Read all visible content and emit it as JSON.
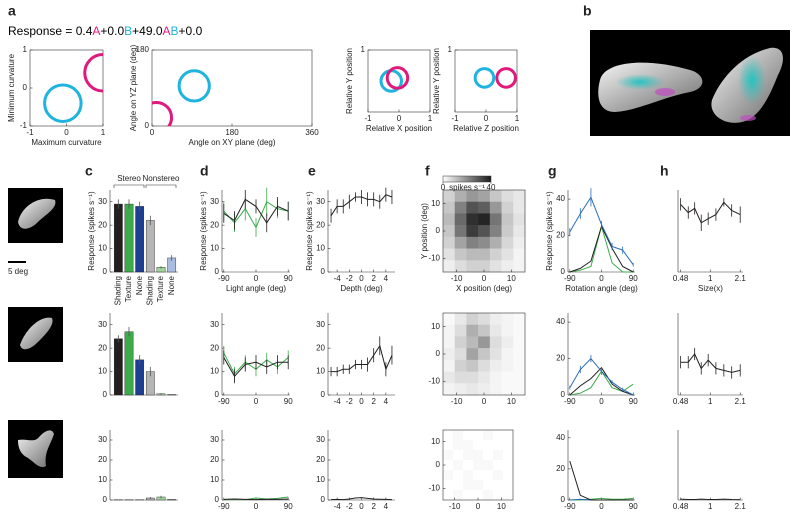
{
  "panel_labels": [
    "a",
    "b",
    "c",
    "d",
    "e",
    "f",
    "g",
    "h"
  ],
  "equation": [
    {
      "text": "Response = 0.4",
      "color": "#000000"
    },
    {
      "text": "A",
      "color": "#e0197d"
    },
    {
      "text": "+0.0",
      "color": "#000000"
    },
    {
      "text": "B",
      "color": "#1fb3e0"
    },
    {
      "text": "+49.0",
      "color": "#000000"
    },
    {
      "text": "A",
      "color": "#e0197d"
    },
    {
      "text": "B",
      "color": "#1fb3e0"
    },
    {
      "text": "+0.0",
      "color": "#000000"
    }
  ],
  "scale_bar_label": "5 deg",
  "chart_data": [
    {
      "type": "tuning",
      "xlabel": "Maximum curvature",
      "ylabel": "Minimum curvature",
      "xlim": [
        -1,
        1
      ],
      "ylim": [
        -1,
        1
      ],
      "xticks": [
        -1,
        0,
        1
      ],
      "yticks": [
        -1,
        0,
        1
      ],
      "circles": [
        {
          "color": "#1fb3e0",
          "x": -0.1,
          "y": -0.4,
          "r": 0.5
        },
        {
          "color": "#e0197d",
          "x": 1,
          "y": 0.4,
          "r": 0.5
        }
      ]
    },
    {
      "type": "tuning",
      "xlabel": "Angle on XY plane (deg)",
      "ylabel": "Angle on YZ plane (deg)",
      "xlim": [
        0,
        360
      ],
      "ylim": [
        0,
        180
      ],
      "xticks": [
        0,
        180,
        360
      ],
      "yticks": [
        0,
        180
      ],
      "circles": [
        {
          "color": "#1fb3e0",
          "x": 95,
          "y": 95,
          "r": 34
        },
        {
          "color": "#e0197d",
          "x": 10,
          "y": 20,
          "r": 34
        }
      ]
    },
    {
      "type": "tuning",
      "xlabel": "Relative X position",
      "ylabel": "Relative Y position",
      "xlim": [
        -1,
        1
      ],
      "ylim": [
        -1,
        1
      ],
      "xticks": [
        -1,
        0,
        1
      ],
      "yticks": [
        1
      ],
      "circles": [
        {
          "color": "#1fb3e0",
          "x": -0.25,
          "y": 0,
          "r": 0.33
        },
        {
          "color": "#e0197d",
          "x": -0.05,
          "y": 0.1,
          "r": 0.33
        }
      ]
    },
    {
      "type": "tuning",
      "xlabel": "Relative Z position",
      "ylabel": "Relative Y position",
      "xlim": [
        -1,
        1
      ],
      "ylim": [
        -1,
        1
      ],
      "xticks": [
        -1,
        0,
        1
      ],
      "yticks": [
        1
      ],
      "circles": [
        {
          "color": "#1fb3e0",
          "x": -0.05,
          "y": 0.1,
          "r": 0.3
        },
        {
          "color": "#e0197d",
          "x": 0.65,
          "y": 0.1,
          "r": 0.3
        }
      ]
    },
    {
      "type": "bar",
      "ylabel": "Response (spikes s⁻¹)",
      "categories": [
        "Shading",
        "Texture",
        "None",
        "Shading",
        "Texture",
        "None"
      ],
      "groups": [
        "Stereo",
        "Nonstereo"
      ],
      "values": [
        29,
        29,
        28,
        22,
        2,
        6
      ],
      "errors": [
        2,
        2,
        2,
        2,
        0.5,
        1.2
      ],
      "colors": [
        "#231f20",
        "#3daa4b",
        "#1e3f8f",
        "#b5b5b5",
        "#9fd39a",
        "#a8bde0"
      ],
      "ylim": [
        0,
        35
      ],
      "yticks": [
        0,
        10,
        20,
        30
      ]
    },
    {
      "type": "line",
      "xlabel": "Light angle (deg)",
      "ylabel": "Response (spikes s⁻¹)",
      "x": [
        -90,
        -60,
        -30,
        0,
        30,
        60,
        90
      ],
      "xlim": [
        -95,
        95
      ],
      "ylim": [
        0,
        35
      ],
      "xticks": [
        -90,
        0,
        90
      ],
      "yticks": [
        0,
        10,
        20,
        30
      ],
      "series": [
        {
          "color": "#3aaa49",
          "values": [
            26,
            21,
            27,
            19,
            30,
            27,
            26
          ],
          "errors": [
            4,
            4,
            5,
            4,
            6,
            4,
            4
          ]
        },
        {
          "color": "#231f20",
          "values": [
            25,
            22,
            31,
            28,
            21,
            28,
            26
          ],
          "errors": [
            4,
            4,
            4,
            3,
            4,
            4,
            4
          ]
        }
      ]
    },
    {
      "type": "line",
      "xlabel": "Depth (deg)",
      "ylabel": "Response (spikes s⁻¹)",
      "x": [
        -5,
        -4,
        -3,
        -2,
        -1,
        0,
        1,
        2,
        3,
        4,
        5
      ],
      "xlim": [
        -5.5,
        5.5
      ],
      "ylim": [
        0,
        35
      ],
      "xticks": [
        -4,
        -2,
        0,
        2,
        4
      ],
      "yticks": [
        0,
        10,
        20,
        30
      ],
      "series": [
        {
          "color": "#231f20",
          "values": [
            24,
            28,
            28,
            30,
            32,
            32,
            31,
            31,
            30,
            33,
            32
          ],
          "errors": [
            3,
            3,
            3,
            3,
            2,
            3,
            3,
            3,
            3,
            3,
            3
          ]
        }
      ]
    },
    {
      "type": "heatmap",
      "xlabel": "X position (deg)",
      "ylabel": "Y position (deg)",
      "xlim": [
        -15,
        15
      ],
      "ylim": [
        -15,
        15
      ],
      "xticks": [
        -10,
        0,
        10
      ],
      "yticks": [
        -10,
        0,
        10
      ],
      "clim": [
        0,
        40
      ],
      "colorbar": {
        "label": "spikes s⁻¹",
        "ticks": [
          0,
          40
        ]
      },
      "values": [
        [
          8,
          14,
          18,
          16,
          10,
          6,
          4
        ],
        [
          10,
          22,
          30,
          28,
          18,
          8,
          4
        ],
        [
          12,
          26,
          36,
          38,
          24,
          10,
          5
        ],
        [
          10,
          24,
          34,
          30,
          22,
          9,
          4
        ],
        [
          8,
          16,
          22,
          20,
          14,
          7,
          3
        ],
        [
          5,
          10,
          12,
          12,
          8,
          5,
          2
        ],
        [
          3,
          6,
          8,
          8,
          5,
          3,
          2
        ]
      ]
    },
    {
      "type": "line",
      "xlabel": "Rotation angle (deg)",
      "ylabel": "Response (spikes s⁻¹)",
      "x": [
        -90,
        -60,
        -30,
        0,
        30,
        60,
        90
      ],
      "xlim": [
        -95,
        95
      ],
      "ylim": [
        0,
        45
      ],
      "xticks": [
        -90,
        0,
        90
      ],
      "yticks": [
        0,
        20,
        40
      ],
      "series": [
        {
          "color": "#3aaa49",
          "values": [
            0,
            1,
            3,
            25,
            5,
            0,
            0
          ]
        },
        {
          "color": "#231f20",
          "values": [
            0,
            2,
            6,
            25,
            13,
            3,
            0
          ]
        },
        {
          "color": "#2b6cb8",
          "values": [
            22,
            32,
            41,
            26,
            14,
            12,
            4
          ],
          "errors": [
            2,
            3,
            5,
            2,
            2,
            2,
            1
          ]
        }
      ]
    },
    {
      "type": "line",
      "xlabel": "Size(x)",
      "x": [
        0.48,
        0.58,
        0.68,
        0.8,
        0.95,
        1.15,
        1.4,
        1.7,
        2.1
      ],
      "log_x": true,
      "xlim": [
        0.45,
        2.25
      ],
      "ylim": [
        0,
        40
      ],
      "xticks": [
        0.48,
        1,
        2.1
      ],
      "series": [
        {
          "color": "#231f20",
          "values": [
            33,
            29,
            31,
            24,
            26,
            28,
            34,
            30,
            28
          ],
          "errors": [
            3,
            3,
            3,
            4,
            3,
            3,
            2,
            3,
            4
          ]
        }
      ]
    },
    {
      "type": "bar",
      "values": [
        24,
        27,
        15,
        10,
        0.5,
        0.2
      ],
      "errors": [
        1.5,
        2,
        2,
        2,
        0.3,
        0.1
      ],
      "colors": [
        "#231f20",
        "#3daa4b",
        "#1e3f8f",
        "#b5b5b5",
        "#9fd39a",
        "#a8bde0"
      ],
      "ylim": [
        0,
        35
      ],
      "yticks": [
        0,
        10,
        20,
        30
      ]
    },
    {
      "type": "line",
      "x": [
        -90,
        -60,
        -30,
        0,
        30,
        60,
        90
      ],
      "xlim": [
        -95,
        95
      ],
      "ylim": [
        0,
        35
      ],
      "xticks": [
        -90,
        0,
        90
      ],
      "yticks": [
        0,
        10,
        20,
        30
      ],
      "series": [
        {
          "color": "#3aaa49",
          "values": [
            18,
            9,
            14,
            11,
            15,
            12,
            16
          ],
          "errors": [
            3,
            3,
            3,
            3,
            3,
            3,
            3
          ]
        },
        {
          "color": "#231f20",
          "values": [
            16,
            8,
            13,
            14,
            12,
            14,
            14
          ],
          "errors": [
            3,
            3,
            3,
            3,
            3,
            3,
            3
          ]
        }
      ]
    },
    {
      "type": "line",
      "x": [
        -5,
        -4,
        -3,
        -2,
        -1,
        0,
        1,
        2,
        3,
        4,
        5
      ],
      "xlim": [
        -5.5,
        5.5
      ],
      "ylim": [
        0,
        35
      ],
      "xticks": [
        -4,
        -2,
        0,
        2,
        4
      ],
      "yticks": [
        0,
        10,
        20,
        30
      ],
      "series": [
        {
          "color": "#231f20",
          "values": [
            10,
            10,
            11,
            11,
            13,
            13,
            13,
            17,
            21,
            11,
            17
          ],
          "errors": [
            2,
            2,
            2,
            2,
            2,
            2,
            3,
            3,
            4,
            3,
            4
          ]
        }
      ]
    },
    {
      "type": "heatmap",
      "xlim": [
        -15,
        15
      ],
      "ylim": [
        -15,
        15
      ],
      "xticks": [
        -10,
        0,
        10
      ],
      "yticks": [
        -10,
        0,
        10
      ],
      "clim": [
        0,
        40
      ],
      "values": [
        [
          1,
          4,
          8,
          6,
          3,
          2,
          1
        ],
        [
          2,
          6,
          14,
          10,
          4,
          2,
          1
        ],
        [
          2,
          8,
          12,
          18,
          6,
          3,
          1
        ],
        [
          3,
          6,
          16,
          10,
          5,
          2,
          1
        ],
        [
          2,
          8,
          10,
          6,
          3,
          2,
          1
        ],
        [
          4,
          6,
          6,
          4,
          2,
          1,
          1
        ],
        [
          2,
          3,
          4,
          3,
          2,
          1,
          1
        ]
      ]
    },
    {
      "type": "line",
      "x": [
        -90,
        -60,
        -30,
        0,
        30,
        60,
        90
      ],
      "xlim": [
        -95,
        95
      ],
      "ylim": [
        0,
        45
      ],
      "xticks": [
        -90,
        0,
        90
      ],
      "yticks": [
        0,
        20,
        40
      ],
      "series": [
        {
          "color": "#3aaa49",
          "values": [
            0,
            1,
            4,
            13,
            4,
            2,
            6
          ]
        },
        {
          "color": "#231f20",
          "values": [
            0,
            5,
            9,
            15,
            6,
            2,
            0
          ]
        },
        {
          "color": "#2b6cb8",
          "values": [
            4,
            14,
            20,
            13,
            7,
            3,
            0
          ],
          "errors": [
            1,
            2,
            2,
            2,
            1,
            1,
            0.5
          ]
        }
      ]
    },
    {
      "type": "line",
      "x": [
        0.48,
        0.58,
        0.68,
        0.8,
        0.95,
        1.15,
        1.4,
        1.7,
        2.1
      ],
      "log_x": true,
      "xlim": [
        0.45,
        2.25
      ],
      "ylim": [
        0,
        40
      ],
      "xticks": [
        0.48,
        1,
        2.1
      ],
      "series": [
        {
          "color": "#231f20",
          "values": [
            16,
            16,
            20,
            13,
            17,
            13,
            12,
            11,
            12
          ],
          "errors": [
            3,
            3,
            3,
            3,
            3,
            3,
            3,
            3,
            3
          ]
        }
      ]
    },
    {
      "type": "bar",
      "values": [
        0.1,
        0.1,
        0.1,
        1,
        1.5,
        0.3
      ],
      "errors": [
        0.1,
        0.1,
        0.1,
        0.5,
        0.6,
        0.2
      ],
      "colors": [
        "#231f20",
        "#3daa4b",
        "#1e3f8f",
        "#b5b5b5",
        "#9fd39a",
        "#a8bde0"
      ],
      "ylim": [
        0,
        35
      ],
      "yticks": [
        0,
        10,
        20,
        30
      ]
    },
    {
      "type": "line",
      "x": [
        -90,
        -60,
        -30,
        0,
        30,
        60,
        90
      ],
      "xlim": [
        -95,
        95
      ],
      "ylim": [
        0,
        35
      ],
      "xticks": [
        -90,
        0,
        90
      ],
      "yticks": [
        0,
        10,
        20,
        30
      ],
      "series": [
        {
          "color": "#3aaa49",
          "values": [
            0.2,
            0.4,
            0.2,
            1,
            0.5,
            0.8,
            1.5
          ]
        },
        {
          "color": "#231f20",
          "values": [
            0.3,
            0.5,
            0.3,
            0.2,
            0.4,
            0.3,
            0.5
          ]
        }
      ]
    },
    {
      "type": "line",
      "x": [
        -5,
        -4,
        -3,
        -2,
        -1,
        0,
        1,
        2,
        3,
        4,
        5
      ],
      "xlim": [
        -5.5,
        5.5
      ],
      "ylim": [
        0,
        35
      ],
      "xticks": [
        -4,
        -2,
        0,
        2,
        4
      ],
      "yticks": [
        0,
        10,
        20,
        30
      ],
      "series": [
        {
          "color": "#231f20",
          "values": [
            0.2,
            0.3,
            0.2,
            0.5,
            1,
            1.2,
            0.8,
            0.5,
            0.4,
            0.3,
            0.2
          ]
        }
      ]
    },
    {
      "type": "heatmap",
      "xlim": [
        -15,
        15
      ],
      "ylim": [
        -15,
        15
      ],
      "xticks": [
        -10,
        0,
        10
      ],
      "yticks": [
        -10,
        0,
        10
      ],
      "clim": [
        0,
        40
      ],
      "values": [
        [
          0,
          1,
          0,
          0,
          1,
          0,
          0
        ],
        [
          0,
          1,
          1,
          0,
          0,
          0,
          0
        ],
        [
          1,
          0,
          1,
          1,
          0,
          1,
          0
        ],
        [
          0,
          1,
          0,
          1,
          1,
          0,
          0
        ],
        [
          1,
          0,
          1,
          0,
          0,
          1,
          0
        ],
        [
          0,
          0,
          1,
          1,
          0,
          0,
          0
        ],
        [
          0,
          1,
          0,
          0,
          1,
          0,
          0
        ]
      ]
    },
    {
      "type": "line",
      "x": [
        -90,
        -60,
        -30,
        0,
        30,
        60,
        90
      ],
      "xlim": [
        -95,
        95
      ],
      "ylim": [
        0,
        45
      ],
      "xticks": [
        -90,
        0,
        90
      ],
      "yticks": [
        0,
        20,
        40
      ],
      "series": [
        {
          "color": "#3aaa49",
          "values": [
            0,
            0,
            0.5,
            1,
            0.5,
            0.5,
            1
          ]
        },
        {
          "color": "#2b6cb8",
          "values": [
            0,
            0.5,
            0,
            0,
            0,
            0,
            0
          ]
        },
        {
          "color": "#231f20",
          "values": [
            25,
            3,
            0,
            0,
            0,
            0,
            0
          ]
        }
      ]
    },
    {
      "type": "line",
      "x": [
        0.48,
        0.58,
        0.68,
        0.8,
        0.95,
        1.15,
        1.4,
        1.7,
        2.1
      ],
      "log_x": true,
      "xlim": [
        0.45,
        2.25
      ],
      "ylim": [
        0,
        40
      ],
      "xticks": [
        0.48,
        1,
        2.1
      ],
      "series": [
        {
          "color": "#231f20",
          "values": [
            0.5,
            0.3,
            0.3,
            0.5,
            0.3,
            0.3,
            0.5,
            0.3,
            0.2
          ]
        }
      ]
    }
  ]
}
